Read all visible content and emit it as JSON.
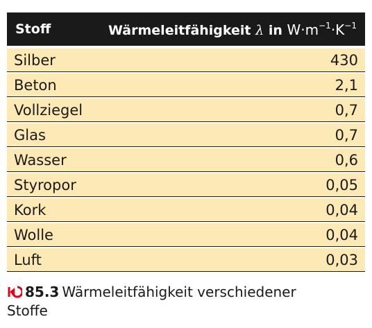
{
  "table": {
    "header": {
      "col1": "Stoff",
      "col2_text": "Wärmeleitfähigkeit",
      "col2_symbol": "λ",
      "col2_in": "in",
      "col2_unit_w": "W·m",
      "col2_unit_exp1": "−1",
      "col2_unit_k": "·K",
      "col2_unit_exp2": "−1"
    },
    "rows": [
      {
        "stoff": "Silber",
        "wert": "430"
      },
      {
        "stoff": "Beton",
        "wert": "2,1"
      },
      {
        "stoff": "Vollziegel",
        "wert": "0,7"
      },
      {
        "stoff": "Glas",
        "wert": "0,7"
      },
      {
        "stoff": "Wasser",
        "wert": "0,6"
      },
      {
        "stoff": "Styropor",
        "wert": "0,05"
      },
      {
        "stoff": "Kork",
        "wert": "0,04"
      },
      {
        "stoff": "Wolle",
        "wert": "0,04"
      },
      {
        "stoff": "Luft",
        "wert": "0,03"
      }
    ]
  },
  "caption": {
    "icon": "reference-arrow-icon",
    "number": "85.3",
    "text": "Wärmeleitfähigkeit verschiedener Stoffe"
  },
  "colors": {
    "header_bg": "#1a1a1a",
    "row_bg": "#fde9b5",
    "accent_red": "#e2001a"
  }
}
